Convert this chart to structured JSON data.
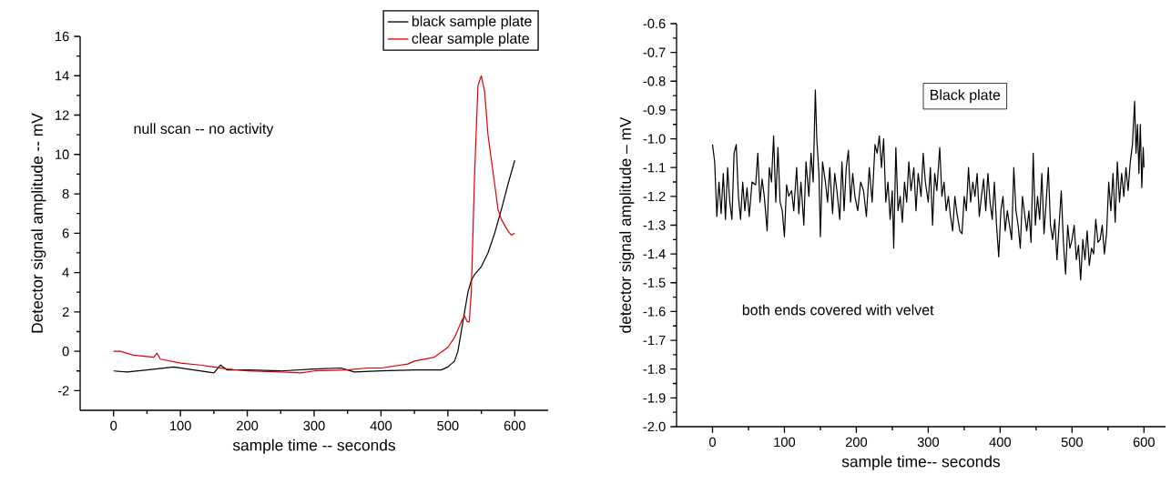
{
  "chart_data": [
    {
      "type": "line",
      "xlabel": "sample time -- seconds",
      "ylabel": "Detector signal amplitude -- mV",
      "xlim": [
        -50,
        650
      ],
      "ylim": [
        -3,
        16
      ],
      "xticks": [
        0,
        100,
        200,
        300,
        400,
        500,
        600
      ],
      "yticks": [
        -2,
        0,
        2,
        4,
        6,
        8,
        10,
        12,
        14,
        16
      ],
      "grid": false,
      "legend": "top right",
      "marker": "none",
      "line_style": "solid",
      "annotations": [
        "null scan -- no activity"
      ],
      "series": [
        {
          "name": "black sample plate",
          "color": "#000000",
          "x": [
            0,
            20,
            50,
            90,
            120,
            150,
            160,
            170,
            200,
            250,
            300,
            340,
            360,
            400,
            450,
            490,
            500,
            510,
            515,
            520,
            525,
            530,
            535,
            540,
            550,
            560,
            570,
            580,
            590,
            600
          ],
          "values": [
            -1.0,
            -1.05,
            -0.95,
            -0.8,
            -0.95,
            -1.1,
            -0.7,
            -0.95,
            -0.95,
            -1.0,
            -0.9,
            -0.85,
            -1.05,
            -1.0,
            -0.95,
            -0.95,
            -0.8,
            -0.5,
            0,
            1,
            2,
            3,
            3.6,
            3.9,
            4.3,
            5.0,
            6.0,
            7.2,
            8.5,
            9.7
          ]
        },
        {
          "name": "clear sample plate",
          "color": "#e00000",
          "x": [
            0,
            10,
            30,
            60,
            65,
            70,
            100,
            130,
            150,
            170,
            200,
            250,
            280,
            300,
            350,
            380,
            400,
            440,
            450,
            480,
            500,
            510,
            520,
            525,
            529,
            532,
            535,
            540,
            545,
            550,
            555,
            560,
            570,
            575,
            580,
            590,
            595,
            600
          ],
          "values": [
            0,
            0,
            -0.2,
            -0.3,
            -0.1,
            -0.4,
            -0.6,
            -0.7,
            -0.8,
            -0.9,
            -1.0,
            -1.05,
            -1.1,
            -1.0,
            -0.95,
            -0.85,
            -0.85,
            -0.65,
            -0.5,
            -0.3,
            0.2,
            0.7,
            1.5,
            1.8,
            1.5,
            1.5,
            3,
            9,
            13.5,
            14,
            13.2,
            11,
            8.5,
            7.2,
            6.7,
            6.1,
            5.9,
            6.0
          ]
        }
      ]
    },
    {
      "type": "line",
      "xlabel": "sample time-- seconds",
      "ylabel": "detector signal amplitude – mV",
      "xlim": [
        -50,
        630
      ],
      "ylim": [
        -2.0,
        -0.6
      ],
      "xticks": [
        0,
        100,
        200,
        300,
        400,
        500,
        600
      ],
      "yticks": [
        {
          "value": -2,
          "label": "-2.0"
        },
        -1.9,
        -1.8,
        -1.7,
        -1.6,
        -1.5,
        -1.4,
        -1.3,
        -1.2,
        -1.1,
        {
          "value": -1,
          "label": "-1.0"
        },
        -0.9,
        -0.8,
        -0.7,
        -0.6
      ],
      "grid": false,
      "legend": false,
      "marker": "none",
      "line_style": "solid",
      "annotations": [
        "Black plate",
        "both ends covered with velvet"
      ],
      "series": [
        {
          "color": "#000000",
          "x": [
            0,
            3,
            6,
            9,
            12,
            15,
            18,
            21,
            24,
            27,
            30,
            33,
            36,
            39,
            42,
            45,
            48,
            51,
            55,
            60,
            63,
            66,
            69,
            72,
            76,
            79,
            82,
            85,
            88,
            91,
            94,
            97,
            100,
            103,
            106,
            110,
            113,
            117,
            120,
            123,
            127,
            130,
            134,
            137,
            140,
            143,
            145,
            148,
            150,
            153,
            157,
            160,
            163,
            167,
            170,
            173,
            177,
            180,
            183,
            186,
            189,
            192,
            195,
            198,
            202,
            206,
            210,
            214,
            218,
            222,
            226,
            229,
            232,
            235,
            238,
            241,
            244,
            247,
            250,
            252,
            255,
            258,
            261,
            264,
            267,
            270,
            273,
            276,
            280,
            283,
            286,
            290,
            293,
            296,
            300,
            303,
            306,
            309,
            312,
            316,
            319,
            322,
            325,
            328,
            331,
            334,
            337,
            340,
            344,
            347,
            350,
            353,
            356,
            359,
            362,
            365,
            368,
            371,
            374,
            377,
            380,
            383,
            386,
            389,
            392,
            395,
            398,
            401,
            404,
            407,
            410,
            413,
            416,
            419,
            422,
            425,
            428,
            431,
            434,
            437,
            440,
            443,
            446,
            449,
            452,
            455,
            458,
            461,
            464,
            467,
            470,
            473,
            476,
            479,
            482,
            485,
            488,
            491,
            494,
            497,
            500,
            503,
            506,
            509,
            512,
            515,
            518,
            521,
            524,
            527,
            530,
            533,
            536,
            539,
            542,
            545,
            548,
            551,
            554,
            557,
            560,
            563,
            566,
            569,
            572,
            575,
            578,
            581,
            584,
            587,
            589,
            591,
            593,
            595,
            597,
            599,
            600
          ],
          "values": [
            -1.02,
            -1.08,
            -1.27,
            -1.15,
            -1.26,
            -1.12,
            -1.28,
            -1.1,
            -1.22,
            -1.28,
            -1.05,
            -1.02,
            -1.2,
            -1.28,
            -1.15,
            -1.25,
            -1.17,
            -1.27,
            -1.15,
            -1.16,
            -1.05,
            -1.22,
            -1.14,
            -1.2,
            -1.32,
            -1.1,
            -1.15,
            -0.99,
            -1.22,
            -1.03,
            -1.22,
            -1.25,
            -1.34,
            -1.16,
            -1.2,
            -1.18,
            -1.25,
            -1.1,
            -1.26,
            -1.15,
            -1.3,
            -1.08,
            -1.2,
            -1.05,
            -1.15,
            -0.83,
            -1.0,
            -1.12,
            -1.34,
            -1.08,
            -1.15,
            -1.22,
            -1.1,
            -1.26,
            -1.12,
            -1.18,
            -1.28,
            -1.08,
            -1.25,
            -1.1,
            -1.04,
            -1.22,
            -1.12,
            -1.2,
            -1.25,
            -1.15,
            -1.18,
            -1.27,
            -1.1,
            -1.22,
            -1.02,
            -1.05,
            -0.99,
            -1.1,
            -1.0,
            -1.22,
            -1.15,
            -1.28,
            -1.18,
            -1.38,
            -1.03,
            -1.25,
            -1.2,
            -1.29,
            -1.15,
            -1.22,
            -1.08,
            -1.18,
            -1.1,
            -1.25,
            -1.12,
            -1.2,
            -1.05,
            -1.15,
            -1.22,
            -1.1,
            -1.3,
            -1.12,
            -1.18,
            -1.03,
            -1.2,
            -1.15,
            -1.25,
            -1.2,
            -1.27,
            -1.32,
            -1.2,
            -1.26,
            -1.32,
            -1.33,
            -1.2,
            -1.25,
            -1.1,
            -1.22,
            -1.15,
            -1.2,
            -1.12,
            -1.27,
            -1.2,
            -1.14,
            -1.25,
            -1.12,
            -1.22,
            -1.28,
            -1.15,
            -1.3,
            -1.41,
            -1.25,
            -1.2,
            -1.32,
            -1.25,
            -1.3,
            -1.35,
            -1.1,
            -1.25,
            -1.3,
            -1.38,
            -1.2,
            -1.26,
            -1.32,
            -1.25,
            -1.36,
            -1.05,
            -1.3,
            -1.2,
            -1.28,
            -1.12,
            -1.33,
            -1.22,
            -1.1,
            -1.3,
            -1.35,
            -1.28,
            -1.42,
            -1.3,
            -1.18,
            -1.36,
            -1.47,
            -1.3,
            -1.38,
            -1.35,
            -1.3,
            -1.42,
            -1.37,
            -1.49,
            -1.35,
            -1.42,
            -1.32,
            -1.44,
            -1.38,
            -1.4,
            -1.28,
            -1.36,
            -1.35,
            -1.3,
            -1.4,
            -1.33,
            -1.15,
            -1.25,
            -1.12,
            -1.29,
            -1.08,
            -1.22,
            -1.12,
            -1.2,
            -1.1,
            -1.18,
            -1.08,
            -1.02,
            -0.87,
            -1.05,
            -0.95,
            -1.12,
            -0.95,
            -1.17,
            -1.03,
            -1.1
          ]
        }
      ]
    }
  ]
}
